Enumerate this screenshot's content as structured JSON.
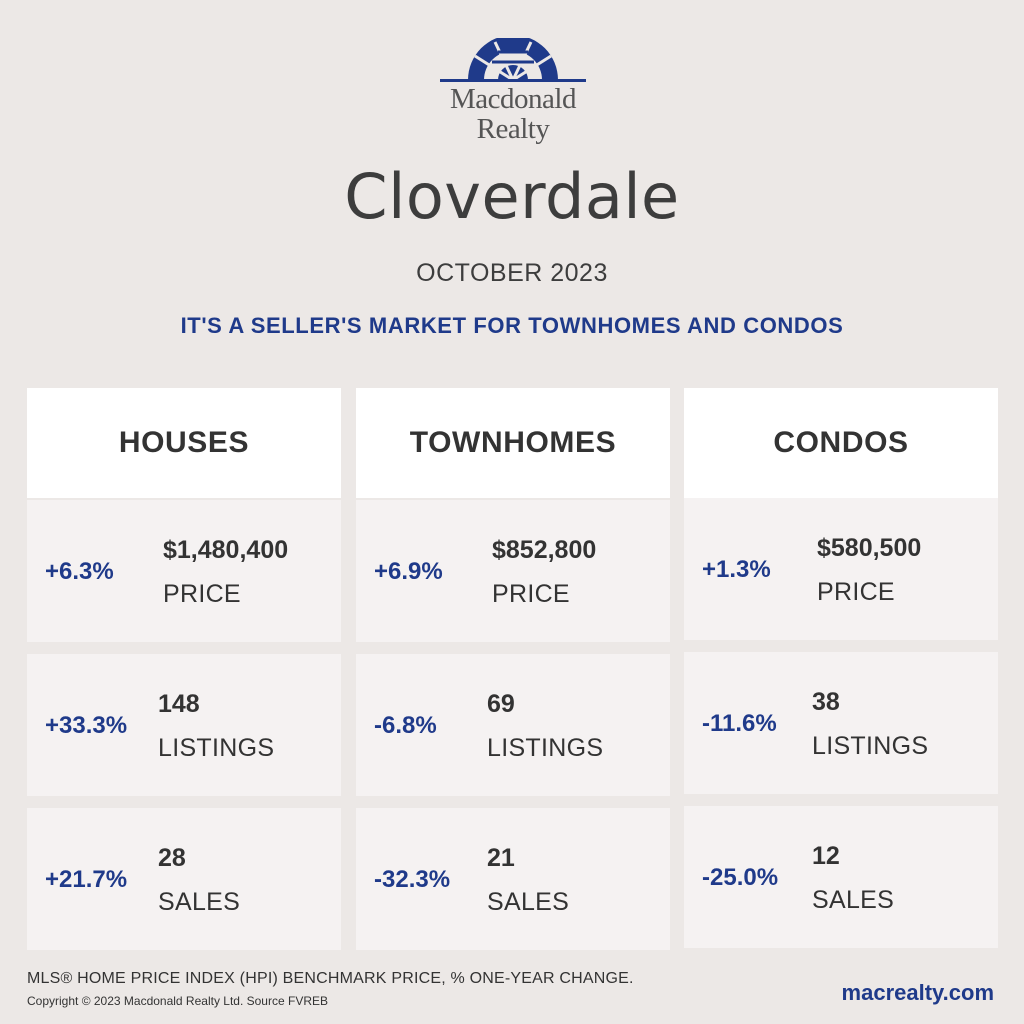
{
  "brand": {
    "line1": "Macdonald",
    "line2": "Realty",
    "color": "#1f3a8a"
  },
  "title": "Cloverdale",
  "month": "OCTOBER 2023",
  "headline": "IT'S A SELLER'S MARKET FOR TOWNHOMES AND CONDOS",
  "columns": [
    {
      "name": "HOUSES",
      "price": {
        "change": "+6.3%",
        "value": "$1,480,400",
        "label": "PRICE"
      },
      "listings": {
        "change": "+33.3%",
        "value": "148",
        "label": "LISTINGS"
      },
      "sales": {
        "change": "+21.7%",
        "value": "28",
        "label": "SALES"
      }
    },
    {
      "name": "TOWNHOMES",
      "price": {
        "change": "+6.9%",
        "value": "$852,800",
        "label": "PRICE"
      },
      "listings": {
        "change": "-6.8%",
        "value": "69",
        "label": "LISTINGS"
      },
      "sales": {
        "change": "-32.3%",
        "value": "21",
        "label": "SALES"
      }
    },
    {
      "name": "CONDOS",
      "price": {
        "change": "+1.3%",
        "value": "$580,500",
        "label": "PRICE"
      },
      "listings": {
        "change": "-11.6%",
        "value": "38",
        "label": "LISTINGS"
      },
      "sales": {
        "change": "-25.0%",
        "value": "12",
        "label": "SALES"
      }
    }
  ],
  "footer": {
    "note": "MLS® HOME PRICE INDEX (HPI) BENCHMARK PRICE, % ONE-YEAR CHANGE.",
    "copyright": "Copyright © 2023 Macdonald Realty Ltd. Source FVREB",
    "website": "macrealty.com"
  },
  "colors": {
    "background": "#ece8e6",
    "accent": "#1f3a8a",
    "card": "#f5f2f2",
    "header": "#ffffff"
  }
}
